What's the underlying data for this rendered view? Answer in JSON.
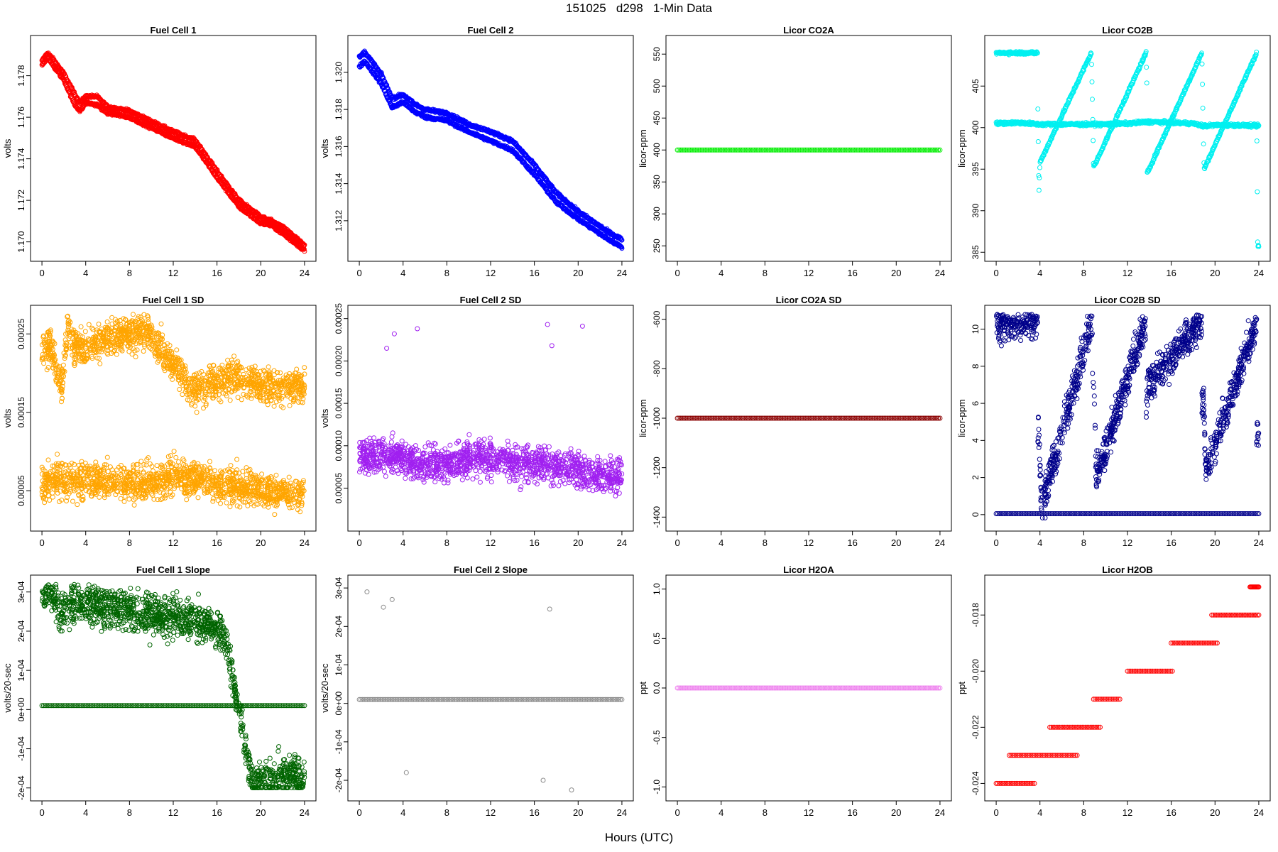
{
  "page": {
    "title": "151025   d298   1-Min Data",
    "xlabel": "Hours (UTC)"
  },
  "chart_data": [
    {
      "title": "Fuel Cell 1",
      "type": "scatter",
      "ylabel": "volts",
      "xlabel": "",
      "xlim": [
        0,
        24
      ],
      "ylim": [
        1.1695,
        1.1795
      ],
      "xticks": [
        0,
        4,
        8,
        12,
        16,
        20,
        24
      ],
      "yticks": [
        1.17,
        1.172,
        1.174,
        1.176,
        1.178
      ],
      "ytick_labels": [
        "1.170",
        "1.172",
        "1.174",
        "1.176",
        "1.178"
      ],
      "color": "#ff0000",
      "series": [
        {
          "x": [
            0.0,
            0.5,
            1.0,
            2.0,
            3.0,
            3.5,
            4.0,
            5.0,
            6.0,
            8.0,
            10.0,
            12.0,
            14.0,
            16.0,
            18.0,
            20.0,
            21.0,
            22.0,
            23.0,
            24.0
          ],
          "y": [
            1.1787,
            1.1791,
            1.1788,
            1.1781,
            1.1771,
            1.1767,
            1.177,
            1.177,
            1.1765,
            1.1763,
            1.1758,
            1.1753,
            1.1749,
            1.1734,
            1.172,
            1.1712,
            1.171,
            1.1707,
            1.1703,
            1.1698
          ]
        },
        {
          "x": [
            0.0,
            0.5,
            1.0,
            2.0,
            3.0,
            3.5,
            4.0,
            5.0,
            6.0,
            8.0,
            10.0,
            12.0,
            14.0,
            16.0,
            18.0,
            20.0,
            21.0,
            22.0,
            23.0,
            24.0
          ],
          "y": [
            1.1785,
            1.1789,
            1.1785,
            1.1778,
            1.1766,
            1.1763,
            1.1767,
            1.1766,
            1.1762,
            1.176,
            1.1755,
            1.175,
            1.1746,
            1.1731,
            1.1717,
            1.1709,
            1.1708,
            1.1704,
            1.17,
            1.1696
          ]
        }
      ]
    },
    {
      "title": "Fuel Cell 2",
      "type": "scatter",
      "ylabel": "volts",
      "xlabel": "",
      "xlim": [
        0,
        24
      ],
      "ylim": [
        1.3103,
        1.3215
      ],
      "xticks": [
        0,
        4,
        8,
        12,
        16,
        20,
        24
      ],
      "yticks": [
        1.312,
        1.314,
        1.316,
        1.318,
        1.32
      ],
      "ytick_labels": [
        "1.312",
        "1.314",
        "1.316",
        "1.318",
        "1.320"
      ],
      "color": "#0000ff",
      "series": [
        {
          "x": [
            0.0,
            0.5,
            1.0,
            2.0,
            3.0,
            4.0,
            5.0,
            6.0,
            8.0,
            10.0,
            12.0,
            14.0,
            16.0,
            18.0,
            20.0,
            22.0,
            23.0,
            24.0
          ],
          "y": [
            1.3208,
            1.3211,
            1.3207,
            1.3199,
            1.3186,
            1.3188,
            1.3183,
            1.318,
            1.3178,
            1.3172,
            1.3168,
            1.3163,
            1.315,
            1.3135,
            1.3125,
            1.3117,
            1.3113,
            1.311
          ]
        },
        {
          "x": [
            0.0,
            0.5,
            1.0,
            2.0,
            3.0,
            4.0,
            5.0,
            6.0,
            8.0,
            10.0,
            12.0,
            14.0,
            16.0,
            18.0,
            20.0,
            22.0,
            23.0,
            24.0
          ],
          "y": [
            1.3203,
            1.3206,
            1.3202,
            1.3194,
            1.3181,
            1.3184,
            1.3179,
            1.3176,
            1.3174,
            1.3168,
            1.3163,
            1.3158,
            1.3145,
            1.313,
            1.3121,
            1.3113,
            1.3109,
            1.3106
          ]
        }
      ]
    },
    {
      "title": "Licor CO2A",
      "type": "scatter",
      "ylabel": "licor-ppm",
      "xlabel": "",
      "xlim": [
        0,
        24
      ],
      "ylim": [
        240,
        565
      ],
      "xticks": [
        0,
        4,
        8,
        12,
        16,
        20,
        24
      ],
      "yticks": [
        250,
        300,
        350,
        400,
        450,
        500,
        550
      ],
      "color": "#00ee00",
      "series": [
        {
          "x": [
            0,
            24
          ],
          "y": [
            400,
            400
          ]
        }
      ]
    },
    {
      "title": "Licor CO2B",
      "type": "scatter",
      "ylabel": "licor-ppm",
      "xlabel": "",
      "xlim": [
        0,
        24
      ],
      "ylim": [
        385,
        410
      ],
      "xticks": [
        0,
        4,
        8,
        12,
        16,
        20,
        24
      ],
      "yticks": [
        385,
        390,
        395,
        400,
        405
      ],
      "color": "#00f0f0",
      "series": [
        {
          "x": [
            0.0,
            2.0,
            4.0,
            6.0,
            8.0,
            10.0,
            12.0,
            14.0,
            16.0,
            18.0,
            19.0,
            20.0,
            22.0,
            24.0
          ],
          "y": [
            400.5,
            400.6,
            400.4,
            400.4,
            400.4,
            400.4,
            400.5,
            400.7,
            400.6,
            400.5,
            400.2,
            400.3,
            400.3,
            400.2
          ]
        },
        {
          "x": [
            3.8,
            3.8,
            3.9,
            4.0,
            8.7,
            8.8,
            8.9,
            13.7,
            13.8,
            13.8,
            18.8,
            18.9,
            19.0,
            23.8,
            23.8,
            23.9
          ],
          "y": [
            409.0,
            403.5,
            392.0,
            395.8,
            409.0,
            402.8,
            395.2,
            409.0,
            403.6,
            394.5,
            409.0,
            401.2,
            395.0,
            409.0,
            403.4,
            385.7
          ]
        }
      ]
    },
    {
      "title": "Fuel Cell 1 SD",
      "type": "scatter",
      "ylabel": "volts",
      "xlabel": "",
      "xlim": [
        0,
        24
      ],
      "ylim": [
        1e-05,
        0.000275
      ],
      "xticks": [
        0,
        4,
        8,
        12,
        16,
        20,
        24
      ],
      "yticks": [
        5e-05,
        0.00015,
        0.00025
      ],
      "ytick_labels": [
        "0.00005",
        "0.00015",
        "0.00025"
      ],
      "color": "#ffa500",
      "series": [
        {
          "x": [
            0.0,
            2.0,
            4.0,
            6.0,
            8.0,
            10.0,
            12.0,
            14.0,
            16.0,
            18.0,
            20.0,
            22.0,
            24.0
          ],
          "y": [
            6e-05,
            6.5e-05,
            6e-05,
            6.5e-05,
            6e-05,
            6e-05,
            7e-05,
            6.5e-05,
            6e-05,
            5.5e-05,
            5e-05,
            4.5e-05,
            4.5e-05
          ]
        },
        {
          "x": [
            0.8,
            1.8,
            2.4,
            2.9,
            9.5,
            13.9,
            17.4,
            20.4
          ],
          "y": [
            0.000231,
            0.000181,
            0.000265,
            0.000231,
            0.000257,
            0.000178,
            0.000196,
            0.000183
          ]
        }
      ]
    },
    {
      "title": "Fuel Cell 2 SD",
      "type": "scatter",
      "ylabel": "volts",
      "xlabel": "",
      "xlim": [
        0,
        24
      ],
      "ylim": [
        1e-05,
        0.000255
      ],
      "xticks": [
        0,
        4,
        8,
        12,
        16,
        20,
        24
      ],
      "yticks": [
        5e-05,
        0.0001,
        0.00015,
        0.0002,
        0.00025
      ],
      "ytick_labels": [
        "0.00005",
        "0.00010",
        "0.00015",
        "0.00020",
        "0.00025"
      ],
      "color": "#a020f0",
      "series": [
        {
          "x": [
            0.0,
            2.0,
            4.0,
            6.0,
            8.0,
            10.0,
            12.0,
            14.0,
            16.0,
            18.0,
            20.0,
            22.0,
            24.0
          ],
          "y": [
            8.5e-05,
            9e-05,
            8.5e-05,
            8e-05,
            8e-05,
            8.5e-05,
            8.5e-05,
            8e-05,
            8e-05,
            7.5e-05,
            7e-05,
            6.5e-05,
            6.5e-05
          ]
        },
        {
          "x": [
            2.5,
            3.2,
            5.3,
            17.2,
            17.6,
            20.4
          ],
          "y": [
            0.000215,
            0.000232,
            0.000238,
            0.000243,
            0.000218,
            0.000241
          ]
        }
      ]
    },
    {
      "title": "Licor CO2A SD",
      "type": "scatter",
      "ylabel": "licor-ppm",
      "xlabel": "",
      "xlim": [
        0,
        24
      ],
      "ylim": [
        -1420,
        -580
      ],
      "xticks": [
        0,
        4,
        8,
        12,
        16,
        20,
        24
      ],
      "yticks": [
        -1400,
        -1200,
        -1000,
        -800,
        -600
      ],
      "color": "#8b0000",
      "series": [
        {
          "x": [
            0,
            24
          ],
          "y": [
            -1000,
            -1000
          ]
        }
      ]
    },
    {
      "title": "Licor CO2B SD",
      "type": "scatter",
      "ylabel": "licor-ppm",
      "xlabel": "",
      "xlim": [
        0,
        24
      ],
      "ylim": [
        -0.4,
        10.8
      ],
      "xticks": [
        0,
        4,
        8,
        12,
        16,
        20,
        24
      ],
      "yticks": [
        0,
        2,
        4,
        6,
        8,
        10
      ],
      "color": "#00008b",
      "series": [
        {
          "x": [
            0,
            24
          ],
          "y": [
            0.05,
            0.05
          ]
        },
        {
          "x": [
            3.8,
            3.6,
            3.9,
            4.1,
            4.1,
            8.8,
            8.8,
            9.0,
            9.1,
            8.4,
            8.3,
            13.7,
            13.6,
            13.8,
            18.8,
            18.7,
            19.0,
            19.1,
            19.2,
            23.8,
            23.7
          ],
          "y": [
            10.4,
            4.4,
            4.7,
            1.0,
            0.3,
            10.5,
            6.7,
            6.3,
            2.4,
            1.6,
            0.5,
            10.4,
            4.3,
            6.9,
            10.5,
            6.7,
            6.0,
            3.3,
            2.4,
            10.4,
            4.4
          ]
        }
      ]
    },
    {
      "title": "Fuel Cell 1 Slope",
      "type": "scatter",
      "ylabel": "volts/20-sec",
      "xlabel": "",
      "xlim": [
        0,
        24
      ],
      "ylim": [
        -0.00021,
        0.00032
      ],
      "xticks": [
        0,
        4,
        8,
        12,
        16,
        20,
        24
      ],
      "yticks": [
        -0.0002,
        -0.0001,
        0,
        0.0001,
        0.0002,
        0.0003
      ],
      "ytick_labels": [
        "-2e-04",
        "-1e-04",
        "0e+00",
        "1e-04",
        "2e-04",
        "3e-04"
      ],
      "color": "#006400",
      "series": [
        {
          "x": [
            0,
            24
          ],
          "y": [
            1e-05,
            1e-05
          ]
        },
        {
          "x": [
            0.8,
            1.8,
            2.3,
            2.9,
            14.4,
            15.5,
            16.8,
            19.3,
            21.6
          ],
          "y": [
            0.000305,
            0.000235,
            0.000265,
            0.000275,
            0.000225,
            0.000215,
            0.000185,
            -0.000195,
            -0.00017
          ]
        }
      ]
    },
    {
      "title": "Fuel Cell 2 Slope",
      "type": "scatter",
      "ylabel": "volts/20-sec",
      "xlabel": "",
      "xlim": [
        0,
        24
      ],
      "ylim": [
        -0.00023,
        0.00031
      ],
      "xticks": [
        0,
        4,
        8,
        12,
        16,
        20,
        24
      ],
      "yticks": [
        -0.0002,
        -0.0001,
        0,
        0.0001,
        0.0002,
        0.0003
      ],
      "ytick_labels": [
        "-2e-04",
        "-1e-04",
        "0e+00",
        "1e-04",
        "2e-04",
        "3e-04"
      ],
      "color": "#8c8c8c",
      "series": [
        {
          "x": [
            0,
            24
          ],
          "y": [
            1e-05,
            1e-05
          ]
        },
        {
          "x": [
            0.7,
            2.2,
            3.0,
            17.4,
            16.8,
            19.4,
            4.3
          ],
          "y": [
            0.00029,
            0.00025,
            0.00027,
            0.000245,
            -0.0002,
            -0.000225,
            -0.00018
          ]
        }
      ]
    },
    {
      "title": "Licor H2OA",
      "type": "scatter",
      "ylabel": "ppt",
      "xlabel": "",
      "xlim": [
        0,
        24
      ],
      "ylim": [
        -1.05,
        1.05
      ],
      "xticks": [
        0,
        4,
        8,
        12,
        16,
        20,
        24
      ],
      "yticks": [
        -1.0,
        -0.5,
        0.0,
        0.5,
        1.0
      ],
      "ytick_labels": [
        "-1.0",
        "-0.5",
        "0.0",
        "0.5",
        "1.0"
      ],
      "color": "#ee82ee",
      "series": [
        {
          "x": [
            0,
            24
          ],
          "y": [
            0,
            0
          ]
        }
      ]
    },
    {
      "title": "Licor H2OB",
      "type": "scatter",
      "ylabel": "ppt",
      "xlabel": "",
      "xlim": [
        0,
        24
      ],
      "ylim": [
        -0.0243,
        -0.0169
      ],
      "xticks": [
        0,
        4,
        8,
        12,
        16,
        20,
        24
      ],
      "yticks": [
        -0.024,
        -0.022,
        -0.02,
        -0.018
      ],
      "ytick_labels": [
        "-0.024",
        "-0.022",
        "-0.020",
        "-0.018"
      ],
      "color": "#ff0000",
      "series": [
        {
          "x": [
            0.0,
            1.4,
            3.3,
            3.5
          ],
          "y": [
            -0.024,
            -0.024,
            -0.024,
            -0.024
          ]
        },
        {
          "x": [
            1.2,
            5.3,
            7.4
          ],
          "y": [
            -0.023,
            -0.023,
            -0.023
          ]
        },
        {
          "x": [
            4.9,
            5.9,
            6.6,
            9.5
          ],
          "y": [
            -0.022,
            -0.022,
            -0.022,
            -0.022
          ]
        },
        {
          "x": [
            8.9,
            11.3
          ],
          "y": [
            -0.021,
            -0.021
          ]
        },
        {
          "x": [
            12.0,
            13.3,
            14.3,
            16.1
          ],
          "y": [
            -0.02,
            -0.02,
            -0.02,
            -0.02
          ]
        },
        {
          "x": [
            16.0,
            20.2
          ],
          "y": [
            -0.019,
            -0.019
          ]
        },
        {
          "x": [
            19.7,
            24.0
          ],
          "y": [
            -0.018,
            -0.018
          ]
        },
        {
          "x": [
            23.2,
            24.0
          ],
          "y": [
            -0.017,
            -0.017
          ]
        }
      ]
    }
  ]
}
